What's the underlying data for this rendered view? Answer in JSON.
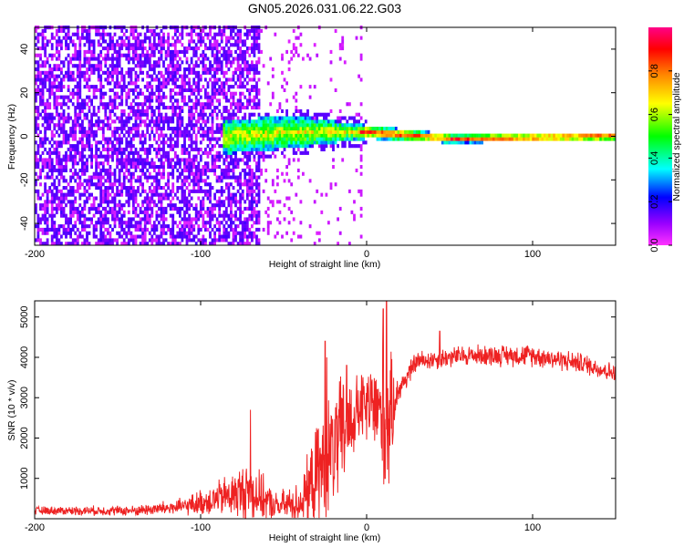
{
  "chart_data": [
    {
      "type": "heatmap",
      "title": "GN05.2026.031.06.22.G03",
      "xlabel": "Height of straight line (km)",
      "ylabel": "Frequency (Hz)",
      "xlim": [
        -200,
        150
      ],
      "ylim": [
        -50,
        50
      ],
      "xticks": [
        -200,
        -100,
        0,
        100
      ],
      "yticks": [
        40,
        20,
        0,
        -20,
        -40
      ],
      "colorbar": {
        "label": "Normalized spectral amplitude",
        "range": [
          0,
          1
        ],
        "ticks": [
          0.0,
          0.2,
          0.4,
          0.6,
          0.8
        ],
        "colormap": [
          "#ff00ff",
          "#7700ff",
          "#0000ff",
          "#00ffff",
          "#00ff00",
          "#ffff00",
          "#ff8800",
          "#ff0000",
          "#ff0088"
        ]
      },
      "band": {
        "description_points": [
          {
            "x": -85,
            "center_hz": 0,
            "halfwidth_hz": 8
          },
          {
            "x": -40,
            "center_hz": 2,
            "halfwidth_hz": 7
          },
          {
            "x": 0,
            "center_hz": 2,
            "halfwidth_hz": 3
          },
          {
            "x": 50,
            "center_hz": -1,
            "halfwidth_hz": 2
          },
          {
            "x": 150,
            "center_hz": 0,
            "halfwidth_hz": 2
          }
        ]
      },
      "noise_regions": [
        {
          "x_from": -200,
          "x_to": -65,
          "density": "high"
        },
        {
          "x_from": -65,
          "x_to": -5,
          "density": "low"
        }
      ]
    },
    {
      "type": "line",
      "xlabel": "Height of straight line (km)",
      "ylabel": "SNR (10 * v/v)",
      "xlim": [
        -200,
        150
      ],
      "ylim": [
        0,
        5400
      ],
      "xticks": [
        -200,
        -100,
        0,
        100
      ],
      "yticks": [
        1000,
        2000,
        3000,
        4000,
        5000
      ],
      "color": "#ee2222",
      "envelope": [
        {
          "x": -200,
          "mean": 200,
          "amp": 120
        },
        {
          "x": -140,
          "mean": 200,
          "amp": 150
        },
        {
          "x": -110,
          "mean": 300,
          "amp": 250
        },
        {
          "x": -90,
          "mean": 500,
          "amp": 500
        },
        {
          "x": -70,
          "mean": 700,
          "amp": 900
        },
        {
          "x": -55,
          "mean": 300,
          "amp": 400
        },
        {
          "x": -40,
          "mean": 400,
          "amp": 600
        },
        {
          "x": -28,
          "mean": 1200,
          "amp": 1600
        },
        {
          "x": -15,
          "mean": 2000,
          "amp": 1800
        },
        {
          "x": -5,
          "mean": 2700,
          "amp": 1000
        },
        {
          "x": 5,
          "mean": 2800,
          "amp": 1400
        },
        {
          "x": 12,
          "mean": 2200,
          "amp": 2600
        },
        {
          "x": 18,
          "mean": 3100,
          "amp": 400
        },
        {
          "x": 30,
          "mean": 3900,
          "amp": 300
        },
        {
          "x": 60,
          "mean": 4050,
          "amp": 300
        },
        {
          "x": 100,
          "mean": 4050,
          "amp": 320
        },
        {
          "x": 130,
          "mean": 3850,
          "amp": 300
        },
        {
          "x": 150,
          "mean": 3600,
          "amp": 280
        }
      ],
      "peaks": [
        {
          "x": -70,
          "y": 2700
        },
        {
          "x": -25,
          "y": 4400
        },
        {
          "x": -24,
          "y": 4000
        },
        {
          "x": -12,
          "y": 3800
        },
        {
          "x": 10,
          "y": 5200
        },
        {
          "x": 12,
          "y": 5400
        },
        {
          "x": 11,
          "y": 1000
        },
        {
          "x": 44,
          "y": 4650
        }
      ]
    }
  ]
}
